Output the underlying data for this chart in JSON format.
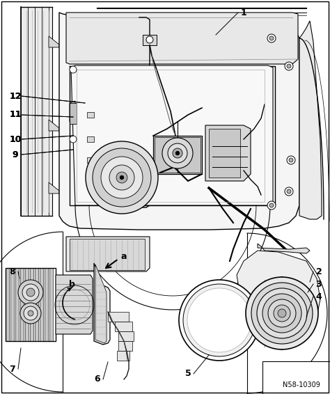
{
  "background_color": "#ffffff",
  "dpi": 100,
  "figure_width": 4.74,
  "figure_height": 5.66,
  "watermark": "N58-10309",
  "line_color": "#000000",
  "light_gray": "#d8d8d8",
  "mid_gray": "#b0b0b0",
  "dark_gray": "#606060",
  "bg_gray": "#f0f0f0"
}
